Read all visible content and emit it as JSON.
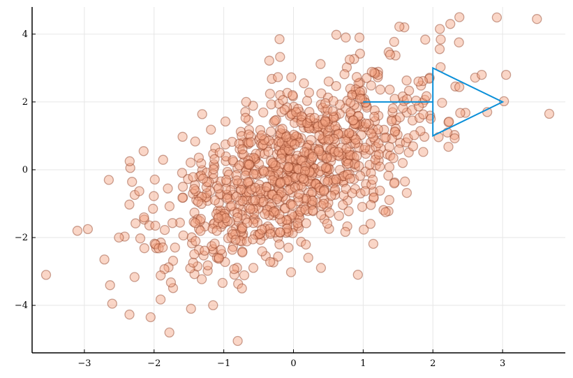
{
  "chart_data": {
    "type": "scatter",
    "xlim": [
      -3.75,
      3.9
    ],
    "ylim": [
      -5.4,
      4.8
    ],
    "xticks": [
      -3,
      -2,
      -1,
      0,
      1,
      2,
      3
    ],
    "yticks": [
      -4,
      -2,
      0,
      2,
      4
    ],
    "xtick_labels": [
      "−3",
      "−2",
      "−1",
      "0",
      "1",
      "2",
      "3"
    ],
    "ytick_labels": [
      "−4",
      "−2",
      "0",
      "2",
      "4"
    ],
    "grid": true,
    "legend": "none",
    "colors": {
      "point_fill": "#f4a582",
      "point_stroke": "#8c3a20",
      "line": "#0a8fd8"
    },
    "arrow": {
      "x": [
        1,
        2,
        2,
        3,
        2,
        2
      ],
      "y": [
        2,
        2,
        3,
        2,
        1,
        2
      ]
    },
    "points": {
      "count": 1000,
      "mean": [
        0,
        0
      ],
      "std": [
        1,
        1.5
      ],
      "correlation": 0.6,
      "seed": 42,
      "outliers": [
        [
          -3.55,
          -3.1
        ],
        [
          -3.1,
          -1.8
        ],
        [
          -2.95,
          -1.75
        ],
        [
          -2.65,
          -0.3
        ],
        [
          -2.6,
          -3.95
        ],
        [
          -2.05,
          -4.35
        ],
        [
          -1.78,
          -4.8
        ],
        [
          -0.8,
          -5.05
        ],
        [
          -0.2,
          3.85
        ],
        [
          0.75,
          3.9
        ],
        [
          2.38,
          4.5
        ],
        [
          2.25,
          4.3
        ],
        [
          2.1,
          4.15
        ],
        [
          3.67,
          1.65
        ],
        [
          3.02,
          2.02
        ],
        [
          2.78,
          1.7
        ],
        [
          2.7,
          2.8
        ],
        [
          -1.47,
          -4.1
        ],
        [
          -2.35,
          0.25
        ],
        [
          -2.15,
          0.55
        ]
      ]
    }
  }
}
